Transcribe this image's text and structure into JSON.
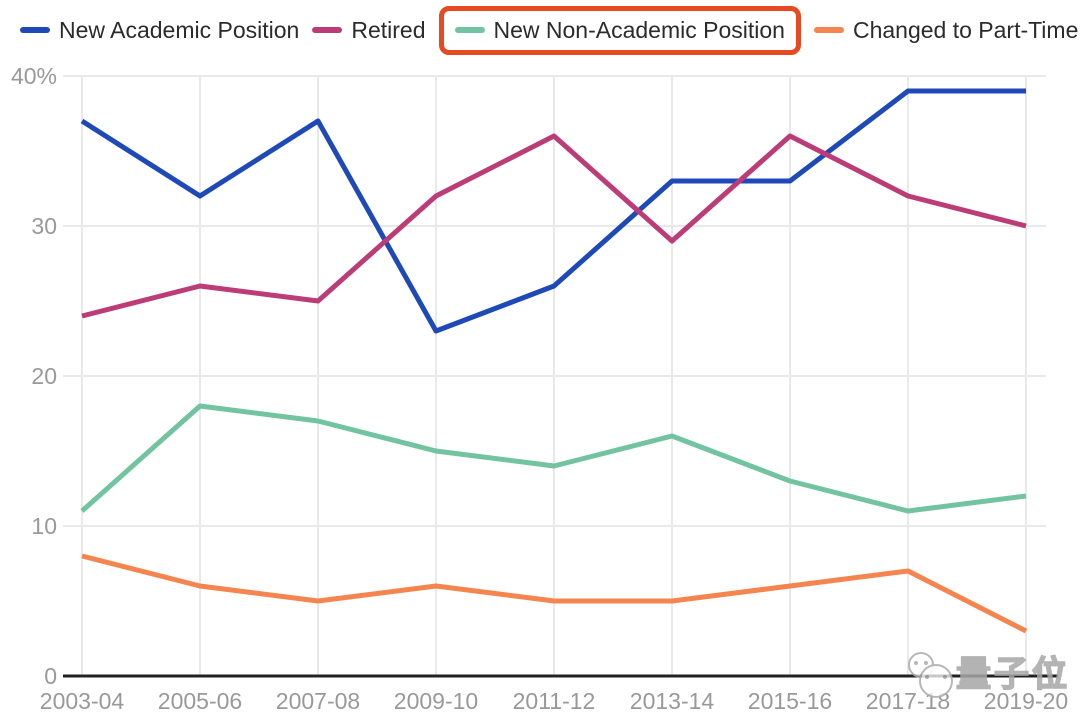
{
  "legend": {
    "highlight_color": "#e64a21",
    "items": [
      {
        "label": "New Academic Position",
        "color": "#1e4ab8",
        "highlighted": false
      },
      {
        "label": "Retired",
        "color": "#bc3c77",
        "highlighted": false
      },
      {
        "label": "New Non-Academic Position",
        "color": "#72c3a0",
        "highlighted": true
      },
      {
        "label": "Changed to Part-Time",
        "color": "#f5854f",
        "highlighted": false
      }
    ]
  },
  "chart_data": {
    "type": "line",
    "categories": [
      "2003-04",
      "2005-06",
      "2007-08",
      "2009-10",
      "2011-12",
      "2013-14",
      "2015-16",
      "2017-18",
      "2019-20"
    ],
    "series": [
      {
        "name": "New Academic Position",
        "color": "#1e4ab8",
        "values": [
          37,
          32,
          37,
          23,
          26,
          33,
          33,
          39,
          39
        ]
      },
      {
        "name": "Retired",
        "color": "#bc3c77",
        "values": [
          24,
          26,
          25,
          32,
          36,
          29,
          36,
          32,
          30
        ]
      },
      {
        "name": "New Non-Academic Position",
        "color": "#72c3a0",
        "values": [
          11,
          18,
          17,
          15,
          14,
          16,
          13,
          11,
          12
        ]
      },
      {
        "name": "Changed to Part-Time",
        "color": "#f5854f",
        "values": [
          8,
          6,
          5,
          6,
          5,
          5,
          6,
          7,
          3
        ]
      }
    ],
    "title": "",
    "xlabel": "",
    "ylabel": "",
    "ylim": [
      0,
      40
    ],
    "yticks": [
      {
        "value": 0,
        "label": "0"
      },
      {
        "value": 10,
        "label": "10"
      },
      {
        "value": 20,
        "label": "20"
      },
      {
        "value": 30,
        "label": "30"
      },
      {
        "value": 40,
        "label": "40%"
      }
    ],
    "grid": true,
    "legend_position": "top",
    "annotation": "orange rounded box highlighting the New Non-Academic Position legend entry"
  },
  "style_colors": {
    "grid_line": "#e9e9e9",
    "axis_line": "#212121",
    "tick_label": "#999999",
    "legend_text": "#2b2b2b"
  },
  "watermark": {
    "text": "量子位"
  }
}
